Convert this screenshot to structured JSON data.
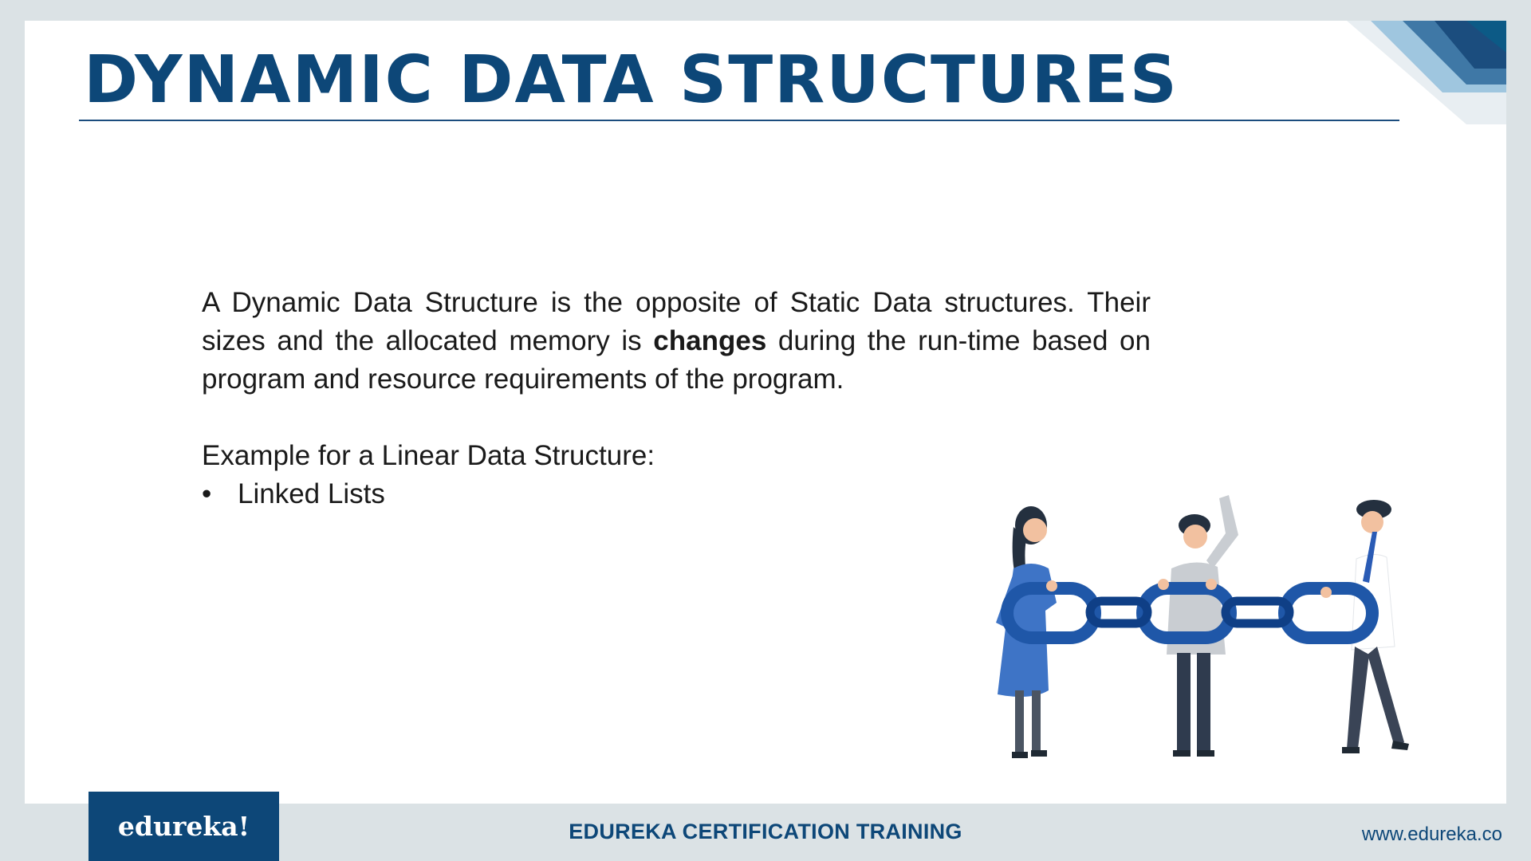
{
  "slide": {
    "title": "DYNAMIC DATA STRUCTURES",
    "paragraph": {
      "part1": "A Dynamic Data Structure is the opposite of Static Data structures. Their sizes and the allocated memory is ",
      "bold": "changes",
      "part2": " during the run-time based on program and resource requirements of the program."
    },
    "example_heading": "Example for a Linear Data Structure:",
    "bullet_symbol": "•",
    "bullets": [
      "Linked Lists"
    ],
    "illustration_icon": "people-holding-chain-links"
  },
  "footer": {
    "logo_text": "edureka!",
    "center_text": "EDUREKA CERTIFICATION TRAINING",
    "url": "www.edureka.co"
  },
  "colors": {
    "brand_navy": "#0d4778",
    "chain_blue": "#1f57a8",
    "frame_gray": "#dbe2e5"
  }
}
